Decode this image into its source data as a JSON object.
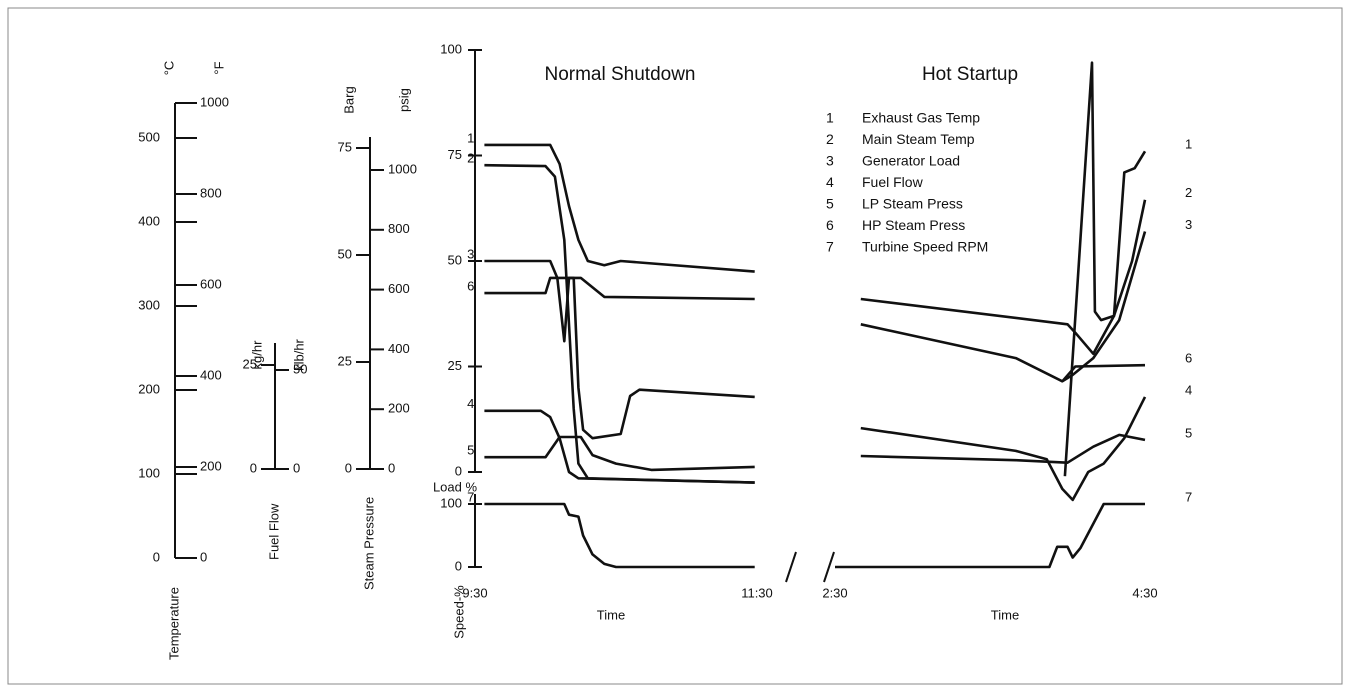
{
  "chart_data": {
    "type": "line",
    "color": "#111111",
    "ylabel": "Load %",
    "ylim": [
      0,
      100
    ],
    "yticks": [
      0,
      25,
      50,
      75,
      100
    ],
    "y2label": "Speed-%",
    "y2lim": [
      0,
      100
    ],
    "y2ticks": [
      0,
      100
    ],
    "scales": [
      {
        "label": "Temperature",
        "axes": [
          {
            "unit": "°C",
            "lim": [
              0,
              500
            ],
            "ticks": [
              0,
              100,
              200,
              300,
              400,
              500
            ]
          },
          {
            "unit": "°F",
            "lim": [
              0,
              1000
            ],
            "ticks": [
              0,
              200,
              400,
              600,
              800,
              1000
            ]
          }
        ]
      },
      {
        "label": "Fuel Flow",
        "axes": [
          {
            "unit": "kg/hr",
            "lim": [
              0,
              25
            ],
            "ticks": [
              0,
              25
            ]
          },
          {
            "unit": "klb/hr",
            "lim": [
              0,
              50
            ],
            "ticks": [
              0,
              50
            ]
          }
        ]
      },
      {
        "label": "Steam Pressure",
        "axes": [
          {
            "unit": "Barg",
            "lim": [
              0,
              75
            ],
            "ticks": [
              0,
              25,
              50,
              75
            ]
          },
          {
            "unit": "psig",
            "lim": [
              0,
              1000
            ],
            "ticks": [
              0,
              200,
              400,
              600,
              800,
              1000
            ]
          }
        ]
      }
    ],
    "legend": [
      {
        "number": "1",
        "name": "Exhaust Gas Temp"
      },
      {
        "number": "2",
        "name": "Main Steam Temp"
      },
      {
        "number": "3",
        "name": "Generator Load"
      },
      {
        "number": "4",
        "name": "Fuel Flow"
      },
      {
        "number": "5",
        "name": "LP Steam Press"
      },
      {
        "number": "6",
        "name": "HP Steam Press"
      },
      {
        "number": "7",
        "name": "Turbine Speed RPM"
      }
    ],
    "panels": [
      {
        "title": "Normal Shutdown",
        "xlabel": "Time",
        "xlim": [
          0,
          120
        ],
        "xticks": [
          {
            "value": 0,
            "label": "9:30"
          },
          {
            "value": 120,
            "label": "11:30"
          }
        ],
        "series": [
          {
            "name": "1",
            "x": [
              4,
              32,
              36,
              40,
              44,
              48,
              55,
              62,
              119
            ],
            "values": [
              77.5,
              77.5,
              73,
              63,
              55,
              50,
              49,
              50,
              47.5
            ]
          },
          {
            "name": "2",
            "x": [
              4,
              30,
              34,
              38,
              40,
              42,
              44,
              48,
              119
            ],
            "values": [
              72.7,
              72.5,
              70,
              55,
              35,
              15,
              2,
              -1.5,
              -2.5
            ]
          },
          {
            "name": "3",
            "x": [
              4,
              32,
              35,
              38,
              40,
              42,
              44,
              46,
              50,
              62,
              66,
              70,
              119
            ],
            "values": [
              50,
              50,
              46,
              31,
              46,
              46,
              20,
              10,
              8,
              9,
              18,
              19.5,
              17.8
            ]
          },
          {
            "name": "4",
            "x": [
              4,
              28,
              32,
              36,
              40,
              44,
              119
            ],
            "values": [
              14.5,
              14.5,
              13,
              8,
              0,
              -1.5,
              -2.5
            ]
          },
          {
            "name": "5",
            "x": [
              4,
              30,
              36,
              45,
              50,
              60,
              75,
              119
            ],
            "values": [
              3.5,
              3.5,
              8.3,
              8.3,
              4,
              2,
              0.5,
              1.2
            ]
          },
          {
            "name": "6",
            "x": [
              4,
              30,
              32,
              45,
              55,
              119
            ],
            "values": [
              42.4,
              42.4,
              46,
              46,
              41.5,
              41
            ]
          },
          {
            "name": "7",
            "axis": "y2",
            "x": [
              4,
              38,
              40,
              44,
              46,
              50,
              55,
              60,
              119
            ],
            "values": [
              100,
              100,
              83,
              80,
              50,
              20,
              5,
              0,
              0
            ]
          }
        ]
      },
      {
        "title": "Hot Startup",
        "xlabel": "Time",
        "xlim": [
          0,
          120
        ],
        "xticks": [
          {
            "value": 0,
            "label": "2:30"
          },
          {
            "value": 120,
            "label": "4:30"
          }
        ],
        "series": [
          {
            "name": "1",
            "x": [
              89,
              99.5,
              100.6,
              103,
              108,
              112,
              116,
              120
            ],
            "values": [
              -1,
              97,
              38,
              36,
              37,
              71,
              72,
              76
            ]
          },
          {
            "name": "2",
            "x": [
              10,
              90,
              93,
              100,
              108,
              115,
              120
            ],
            "values": [
              41,
              35,
              33,
              28,
              37,
              50,
              64.5
            ]
          },
          {
            "name": "3",
            "x": [
              10,
              70,
              88,
              92,
              100,
              110,
              120
            ],
            "values": [
              35,
              27,
              21.5,
              23,
              27,
              36,
              57
            ]
          },
          {
            "name": "4",
            "x": [
              10,
              70,
              82,
              88,
              92,
              98,
              104,
              112,
              120
            ],
            "values": [
              10.4,
              5,
              3,
              -4,
              -6.6,
              0,
              2,
              8,
              17.8
            ]
          },
          {
            "name": "5",
            "x": [
              10,
              70,
              90,
              100,
              110,
              120
            ],
            "values": [
              3.8,
              2.8,
              2.2,
              6,
              8.8,
              7.6
            ]
          },
          {
            "name": "6",
            "x": [
              88,
              93,
              120
            ],
            "values": [
              21.5,
              25,
              25.3
            ]
          },
          {
            "name": "7",
            "axis": "y2",
            "x": [
              0,
              83,
              86,
              90,
              92,
              95,
              104,
              120
            ],
            "values": [
              0,
              0,
              32,
              32,
              15,
              30,
              100,
              100
            ]
          }
        ]
      }
    ]
  }
}
